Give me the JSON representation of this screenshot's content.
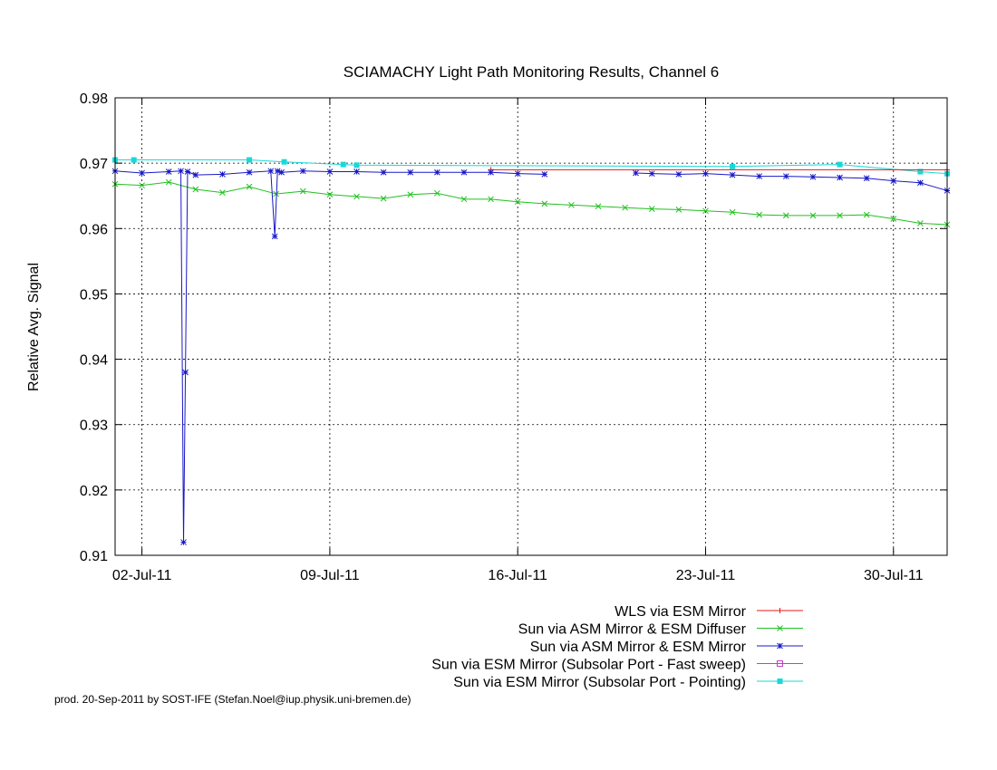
{
  "chart_data": {
    "type": "line",
    "title": "SCIAMACHY Light Path Monitoring Results, Channel 6",
    "xlabel": "",
    "ylabel": "Relative Avg. Signal",
    "x_axis": {
      "type": "date",
      "range": [
        "2011-07-01",
        "2011-08-01"
      ]
    },
    "ylim": [
      0.91,
      0.98
    ],
    "x_ticks": [
      {
        "date": "2011-07-02",
        "label": "02-Jul-11"
      },
      {
        "date": "2011-07-09",
        "label": "09-Jul-11"
      },
      {
        "date": "2011-07-16",
        "label": "16-Jul-11"
      },
      {
        "date": "2011-07-23",
        "label": "23-Jul-11"
      },
      {
        "date": "2011-07-30",
        "label": "30-Jul-11"
      }
    ],
    "y_ticks": [
      "0.91",
      "0.92",
      "0.93",
      "0.94",
      "0.95",
      "0.96",
      "0.97",
      "0.98"
    ],
    "grid": true,
    "legend_position": "bottom-right, below plot",
    "series": [
      {
        "name": "WLS via ESM Mirror",
        "color": "#e8181a",
        "marker": "plus",
        "x": [
          "2011-07-15",
          "2011-08-01"
        ],
        "y": [
          0.969,
          0.969
        ]
      },
      {
        "name": "Sun via ASM Mirror & ESM Diffuser",
        "color": "#20c020",
        "marker": "cross",
        "x": [
          "2011-07-01",
          "2011-07-02",
          "2011-07-03",
          "2011-07-04",
          "2011-07-05",
          "2011-07-06",
          "2011-07-07",
          "2011-07-08",
          "2011-07-09",
          "2011-07-10",
          "2011-07-11",
          "2011-07-12",
          "2011-07-13",
          "2011-07-14",
          "2011-07-15",
          "2011-07-16",
          "2011-07-17",
          "2011-07-18",
          "2011-07-19",
          "2011-07-20",
          "2011-07-21",
          "2011-07-22",
          "2011-07-23",
          "2011-07-24",
          "2011-07-25",
          "2011-07-26",
          "2011-07-27",
          "2011-07-28",
          "2011-07-29",
          "2011-07-30",
          "2011-07-31",
          "2011-08-01"
        ],
        "y": [
          0.9668,
          0.9666,
          0.9671,
          0.966,
          0.9655,
          0.9664,
          0.9653,
          0.9657,
          0.9652,
          0.9649,
          0.9646,
          0.9652,
          0.9654,
          0.9645,
          0.9645,
          0.9641,
          0.9638,
          0.9636,
          0.9634,
          0.9632,
          0.963,
          0.9629,
          0.9627,
          0.9625,
          0.9621,
          0.962,
          0.962,
          0.962,
          0.9621,
          0.9615,
          0.9608,
          0.9606
        ]
      },
      {
        "name": "Sun via ASM Mirror & ESM Mirror",
        "color": "#1818c8",
        "marker": "star",
        "x": [
          "2011-07-01",
          "2011-07-02",
          "2011-07-03",
          "2011-07-03.45",
          "2011-07-03.55",
          "2011-07-03.62",
          "2011-07-03.7",
          "2011-07-04",
          "2011-07-05",
          "2011-07-06",
          "2011-07-06.8",
          "2011-07-06.95",
          "2011-07-07.05",
          "2011-07-07.2",
          "2011-07-08",
          "2011-07-09",
          "2011-07-10",
          "2011-07-11",
          "2011-07-12",
          "2011-07-13",
          "2011-07-14",
          "2011-07-15",
          "2011-07-16",
          "2011-07-17",
          "2011-07-20.4",
          "2011-07-21",
          "2011-07-22",
          "2011-07-23",
          "2011-07-24",
          "2011-07-25",
          "2011-07-26",
          "2011-07-27",
          "2011-07-28",
          "2011-07-29",
          "2011-07-30",
          "2011-07-31",
          "2011-08-01"
        ],
        "y": [
          0.9688,
          0.9685,
          0.9687,
          0.9688,
          0.912,
          0.938,
          0.9687,
          0.9682,
          0.9683,
          0.9686,
          0.9688,
          0.9588,
          0.9688,
          0.9686,
          0.9688,
          0.9687,
          0.9687,
          0.9686,
          0.9686,
          0.9686,
          0.9686,
          0.9686,
          0.9684,
          0.9683,
          0.9685,
          0.9684,
          0.9683,
          0.9684,
          0.9682,
          0.968,
          0.968,
          0.9679,
          0.9678,
          0.9677,
          0.9673,
          0.967,
          0.9658
        ]
      },
      {
        "name": "Sun via ESM Mirror (Subsolar Port - Fast sweep)",
        "color": "#c040c0",
        "marker": "square",
        "x": [],
        "y": []
      },
      {
        "name": "Sun via ESM Mirror (Subsolar Port - Pointing)",
        "color": "#18d8d8",
        "marker": "filled-square",
        "x": [
          "2011-07-01",
          "2011-07-01.7",
          "2011-07-06",
          "2011-07-07.3",
          "2011-07-09.5",
          "2011-07-10",
          "2011-07-24",
          "2011-07-28",
          "2011-07-31",
          "2011-08-01"
        ],
        "y": [
          0.9705,
          0.9705,
          0.9705,
          0.9702,
          0.9698,
          0.9697,
          0.9695,
          0.9698,
          0.9687,
          0.9684
        ]
      }
    ]
  },
  "footer": "prod. 20-Sep-2011 by SOST-IFE (Stefan.Noel@iup.physik.uni-bremen.de)"
}
